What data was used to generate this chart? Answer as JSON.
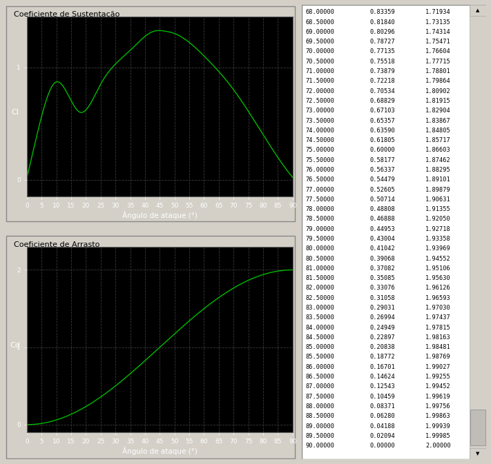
{
  "title_top": "Coeficiente de Sustentação",
  "title_bottom": "Coeficiente de Arrasto",
  "xlabel": "Ângulo de ataque (°)",
  "ylabel_top": "Cl",
  "ylabel_bottom": "Cd",
  "bg_color": "#000000",
  "panel_bg": "#d4d0c8",
  "line_color": "#00bb00",
  "grid_color": "#3a3a3a",
  "xticks": [
    0,
    5,
    10,
    15,
    20,
    25,
    30,
    35,
    40,
    45,
    50,
    55,
    60,
    65,
    70,
    75,
    80,
    85,
    90
  ],
  "yticks_top": [
    0,
    1
  ],
  "yticks_bottom": [
    0,
    1,
    2
  ],
  "table_data": [
    [
      68.0,
      0.83359,
      1.71934
    ],
    [
      68.5,
      0.8184,
      1.73135
    ],
    [
      69.0,
      0.80296,
      1.74314
    ],
    [
      69.5,
      0.78727,
      1.75471
    ],
    [
      70.0,
      0.77135,
      1.76604
    ],
    [
      70.5,
      0.75518,
      1.77715
    ],
    [
      71.0,
      0.73879,
      1.78801
    ],
    [
      71.5,
      0.72218,
      1.79864
    ],
    [
      72.0,
      0.70534,
      1.80902
    ],
    [
      72.5,
      0.68829,
      1.81915
    ],
    [
      73.0,
      0.67103,
      1.82904
    ],
    [
      73.5,
      0.65357,
      1.83867
    ],
    [
      74.0,
      0.6359,
      1.84805
    ],
    [
      74.5,
      0.61805,
      1.85717
    ],
    [
      75.0,
      0.6,
      1.86603
    ],
    [
      75.5,
      0.58177,
      1.87462
    ],
    [
      76.0,
      0.56337,
      1.88295
    ],
    [
      76.5,
      0.54479,
      1.89101
    ],
    [
      77.0,
      0.52605,
      1.89879
    ],
    [
      77.5,
      0.50714,
      1.90631
    ],
    [
      78.0,
      0.48808,
      1.91355
    ],
    [
      78.5,
      0.46888,
      1.9205
    ],
    [
      79.0,
      0.44953,
      1.92718
    ],
    [
      79.5,
      0.43004,
      1.93358
    ],
    [
      80.0,
      0.41042,
      1.93969
    ],
    [
      80.5,
      0.39068,
      1.94552
    ],
    [
      81.0,
      0.37082,
      1.95106
    ],
    [
      81.5,
      0.35085,
      1.9563
    ],
    [
      82.0,
      0.33076,
      1.96126
    ],
    [
      82.5,
      0.31058,
      1.96593
    ],
    [
      83.0,
      0.29031,
      1.9703
    ],
    [
      83.5,
      0.26994,
      1.97437
    ],
    [
      84.0,
      0.24949,
      1.97815
    ],
    [
      84.5,
      0.22897,
      1.98163
    ],
    [
      85.0,
      0.20838,
      1.98481
    ],
    [
      85.5,
      0.18772,
      1.98769
    ],
    [
      86.0,
      0.16701,
      1.99027
    ],
    [
      86.5,
      0.14624,
      1.99255
    ],
    [
      87.0,
      0.12543,
      1.99452
    ],
    [
      87.5,
      0.10459,
      1.99619
    ],
    [
      88.0,
      0.08371,
      1.99756
    ],
    [
      88.5,
      0.0628,
      1.99863
    ],
    [
      89.0,
      0.04188,
      1.99939
    ],
    [
      89.5,
      0.02094,
      1.99985
    ],
    [
      90.0,
      0.0,
      2.0
    ]
  ]
}
